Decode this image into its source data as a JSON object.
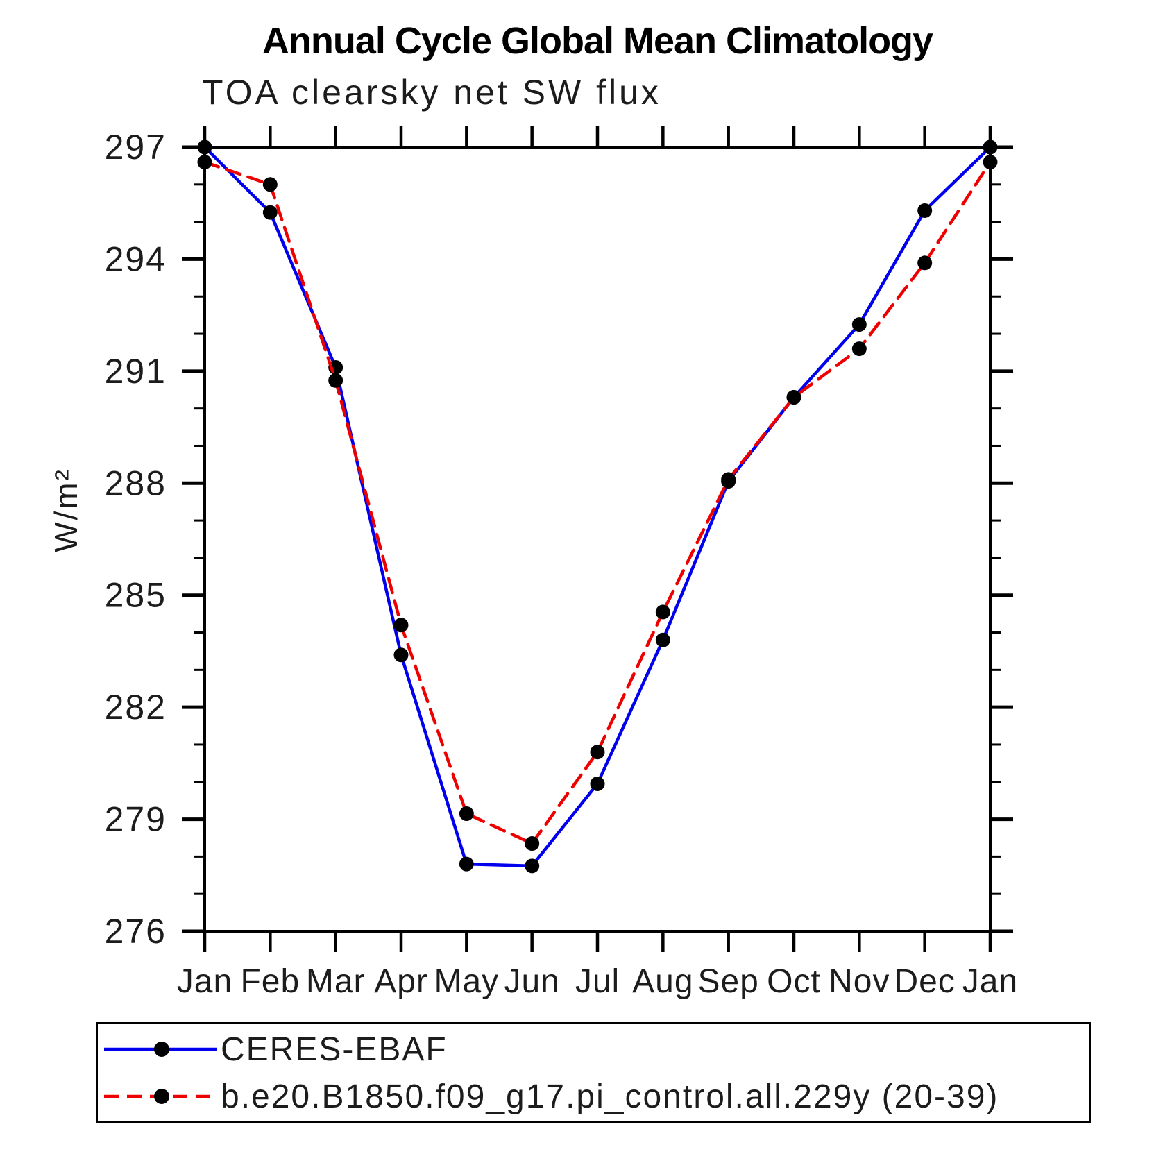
{
  "page": {
    "background": "#ffffff"
  },
  "chart_data": {
    "type": "line",
    "title": "Annual Cycle Global Mean Climatology",
    "subtitle": "TOA clearsky net SW flux",
    "ylabel": "W/m²",
    "xlabel": "",
    "x_categories": [
      "Jan",
      "Feb",
      "Mar",
      "Apr",
      "May",
      "Jun",
      "Jul",
      "Aug",
      "Sep",
      "Oct",
      "Nov",
      "Dec",
      "Jan"
    ],
    "ylim": [
      276,
      297
    ],
    "ytick_major": [
      276,
      279,
      282,
      285,
      288,
      291,
      294,
      297
    ],
    "ytick_minor_step": 1,
    "grid": false,
    "legend_position": "bottom",
    "marker_color": "#000000",
    "series": [
      {
        "name": "CERES-EBAF",
        "color": "#0000ee",
        "style": "solid",
        "marker": "circle",
        "values": [
          297.0,
          295.25,
          291.1,
          283.4,
          277.8,
          277.75,
          279.95,
          283.8,
          288.05,
          290.3,
          292.25,
          295.3,
          297.0
        ]
      },
      {
        "name": "b.e20.B1850.f09_g17.pi_control.all.229y (20-39)",
        "color": "#ee0000",
        "style": "dashed",
        "marker": "circle",
        "values": [
          296.6,
          296.0,
          290.75,
          284.2,
          279.15,
          278.35,
          280.8,
          284.55,
          288.1,
          290.3,
          291.6,
          293.9,
          296.6
        ]
      }
    ]
  }
}
